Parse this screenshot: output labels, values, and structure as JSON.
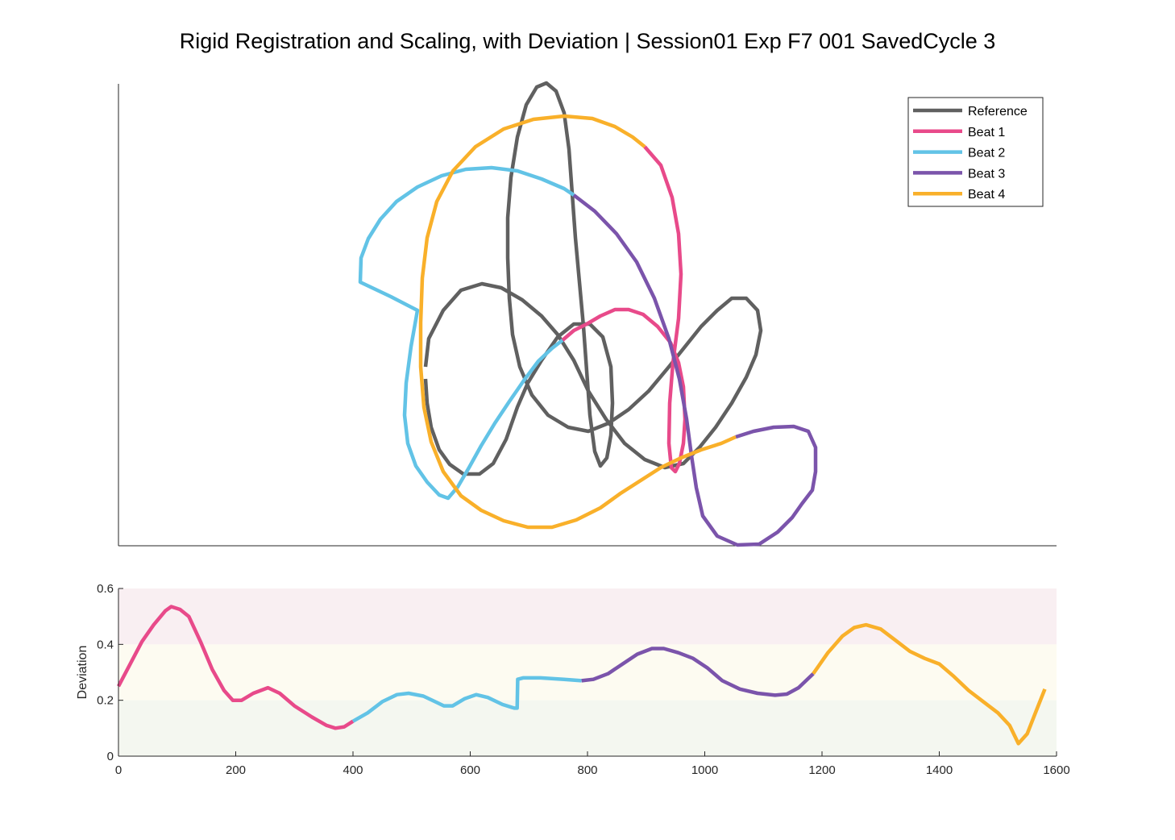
{
  "figure": {
    "title": "Rigid Registration and Scaling, with Deviation | Session01 Exp F7 001 SavedCycle 3"
  },
  "colors": {
    "Reference": "#606060",
    "Beat 1": "#e84a8a",
    "Beat 2": "#62c3e6",
    "Beat 3": "#7b54ab",
    "Beat 4": "#f9b02a",
    "band_high": "#f9eff2",
    "band_mid": "#fdfbf1",
    "band_low": "#f4f7f0"
  },
  "chart_data": [
    {
      "type": "line",
      "name": "trajectory-plot",
      "axes_visible": false,
      "legend_position": "top-right",
      "series": [
        {
          "name": "Reference",
          "color": "#606060",
          "points": [
            [
              528,
              455
            ],
            [
              532,
              420
            ],
            [
              550,
              385
            ],
            [
              572,
              360
            ],
            [
              598,
              352
            ],
            [
              622,
              357
            ],
            [
              648,
              372
            ],
            [
              672,
              392
            ],
            [
              692,
              415
            ],
            [
              712,
              447
            ],
            [
              730,
              485
            ],
            [
              752,
              520
            ],
            [
              775,
              550
            ],
            [
              800,
              570
            ],
            [
              825,
              580
            ],
            [
              848,
              575
            ],
            [
              868,
              555
            ],
            [
              888,
              530
            ],
            [
              908,
              500
            ],
            [
              926,
              468
            ],
            [
              938,
              440
            ],
            [
              944,
              410
            ],
            [
              940,
              385
            ],
            [
              926,
              370
            ],
            [
              908,
              370
            ],
            [
              890,
              385
            ],
            [
              870,
              405
            ],
            [
              850,
              430
            ],
            [
              830,
              455
            ],
            [
              805,
              485
            ],
            [
              780,
              508
            ],
            [
              755,
              525
            ],
            [
              730,
              535
            ],
            [
              705,
              530
            ],
            [
              680,
              515
            ],
            [
              660,
              490
            ],
            [
              645,
              455
            ],
            [
              636,
              415
            ],
            [
              632,
              370
            ],
            [
              630,
              320
            ],
            [
              630,
              270
            ],
            [
              634,
              220
            ],
            [
              642,
              170
            ],
            [
              653,
              130
            ],
            [
              666,
              108
            ],
            [
              678,
              103
            ],
            [
              690,
              113
            ],
            [
              700,
              140
            ],
            [
              706,
              185
            ],
            [
              710,
              240
            ],
            [
              714,
              295
            ],
            [
              719,
              350
            ],
            [
              724,
              405
            ],
            [
              728,
              460
            ],
            [
              732,
              515
            ],
            [
              738,
              560
            ],
            [
              745,
              578
            ],
            [
              753,
              568
            ],
            [
              758,
              540
            ],
            [
              760,
              500
            ],
            [
              758,
              455
            ],
            [
              748,
              418
            ],
            [
              732,
              402
            ],
            [
              712,
              402
            ],
            [
              692,
              418
            ],
            [
              672,
              447
            ],
            [
              655,
              475
            ],
            [
              642,
              505
            ],
            [
              628,
              545
            ],
            [
              612,
              575
            ],
            [
              595,
              588
            ],
            [
              575,
              588
            ],
            [
              558,
              576
            ],
            [
              545,
              558
            ],
            [
              535,
              530
            ],
            [
              530,
              500
            ],
            [
              528,
              470
            ]
          ]
        },
        {
          "name": "Beat 1",
          "color": "#e84a8a",
          "points": [
            [
              800,
              182
            ],
            [
              820,
              205
            ],
            [
              834,
              245
            ],
            [
              842,
              290
            ],
            [
              845,
              340
            ],
            [
              842,
              395
            ],
            [
              835,
              450
            ],
            [
              831,
              500
            ],
            [
              830,
              550
            ],
            [
              833,
              580
            ],
            [
              838,
              585
            ],
            [
              843,
              575
            ],
            [
              848,
              550
            ],
            [
              850,
              520
            ],
            [
              848,
              480
            ],
            [
              842,
              450
            ],
            [
              832,
              425
            ],
            [
              816,
              405
            ],
            [
              798,
              390
            ],
            [
              780,
              384
            ],
            [
              763,
              384
            ],
            [
              745,
              392
            ],
            [
              728,
              402
            ],
            [
              712,
              410
            ],
            [
              698,
              422
            ]
          ]
        },
        {
          "name": "Beat 2",
          "color": "#62c3e6",
          "points": [
            [
              698,
              422
            ],
            [
              685,
              432
            ],
            [
              668,
              448
            ],
            [
              650,
              472
            ],
            [
              632,
              498
            ],
            [
              614,
              525
            ],
            [
              597,
              553
            ],
            [
              582,
              580
            ],
            [
              568,
              604
            ],
            [
              556,
              618
            ],
            [
              545,
              614
            ],
            [
              530,
              598
            ],
            [
              516,
              578
            ],
            [
              506,
              550
            ],
            [
              502,
              515
            ],
            [
              504,
              475
            ],
            [
              510,
              430
            ],
            [
              518,
              385
            ],
            [
              485,
              368
            ],
            [
              447,
              350
            ],
            [
              448,
              320
            ],
            [
              457,
              296
            ],
            [
              472,
              272
            ],
            [
              492,
              250
            ],
            [
              518,
              232
            ],
            [
              548,
              218
            ],
            [
              578,
              210
            ],
            [
              610,
              208
            ],
            [
              642,
              212
            ],
            [
              672,
              222
            ],
            [
              700,
              234
            ],
            [
              712,
              242
            ]
          ]
        },
        {
          "name": "Beat 3",
          "color": "#7b54ab",
          "points": [
            [
              712,
              242
            ],
            [
              738,
              262
            ],
            [
              765,
              290
            ],
            [
              790,
              325
            ],
            [
              812,
              370
            ],
            [
              830,
              420
            ],
            [
              843,
              470
            ],
            [
              852,
              520
            ],
            [
              858,
              565
            ],
            [
              864,
              605
            ],
            [
              872,
              640
            ],
            [
              890,
              665
            ],
            [
              915,
              676
            ],
            [
              942,
              675
            ],
            [
              965,
              660
            ],
            [
              983,
              642
            ],
            [
              995,
              625
            ],
            [
              1008,
              608
            ],
            [
              1012,
              585
            ],
            [
              1012,
              555
            ],
            [
              1003,
              535
            ],
            [
              985,
              529
            ],
            [
              960,
              530
            ],
            [
              935,
              535
            ],
            [
              913,
              542
            ]
          ]
        },
        {
          "name": "Beat 4",
          "color": "#f9b02a",
          "points": [
            [
              913,
              542
            ],
            [
              895,
              550
            ],
            [
              870,
              558
            ],
            [
              845,
              568
            ],
            [
              820,
              580
            ],
            [
              795,
              596
            ],
            [
              770,
              612
            ],
            [
              745,
              630
            ],
            [
              715,
              645
            ],
            [
              685,
              654
            ],
            [
              655,
              654
            ],
            [
              625,
              646
            ],
            [
              597,
              633
            ],
            [
              572,
              615
            ],
            [
              550,
              585
            ],
            [
              535,
              548
            ],
            [
              526,
              505
            ],
            [
              522,
              455
            ],
            [
              522,
              400
            ],
            [
              524,
              345
            ],
            [
              530,
              295
            ],
            [
              542,
              250
            ],
            [
              562,
              212
            ],
            [
              590,
              182
            ],
            [
              625,
              160
            ],
            [
              662,
              148
            ],
            [
              700,
              144
            ],
            [
              735,
              147
            ],
            [
              763,
              157
            ],
            [
              785,
              170
            ],
            [
              800,
              182
            ]
          ]
        }
      ]
    },
    {
      "type": "line",
      "name": "deviation-plot",
      "xlim": [
        0,
        1600
      ],
      "ylim": [
        0,
        0.6
      ],
      "xticks": [
        0,
        200,
        400,
        600,
        800,
        1000,
        1200,
        1400,
        1600
      ],
      "yticks": [
        0,
        0.2,
        0.4,
        0.6
      ],
      "ytick_labels": [
        "0",
        "0.2",
        "0.4",
        "0.6"
      ],
      "ylabel": "Deviation",
      "bands": [
        {
          "from": 0.4,
          "to": 0.6,
          "color": "#f9eff2"
        },
        {
          "from": 0.2,
          "to": 0.4,
          "color": "#fdfbf1"
        },
        {
          "from": 0,
          "to": 0.2,
          "color": "#f4f7f0"
        }
      ],
      "series": [
        {
          "name": "Beat 1",
          "color": "#e84a8a",
          "x": [
            0,
            20,
            40,
            60,
            80,
            90,
            105,
            120,
            140,
            160,
            180,
            195,
            210,
            230,
            255,
            275,
            300,
            330,
            355,
            370,
            385,
            400
          ],
          "y": [
            0.25,
            0.33,
            0.41,
            0.47,
            0.52,
            0.535,
            0.525,
            0.5,
            0.41,
            0.31,
            0.235,
            0.2,
            0.2,
            0.225,
            0.245,
            0.225,
            0.18,
            0.14,
            0.11,
            0.1,
            0.105,
            0.125
          ]
        },
        {
          "name": "Beat 2",
          "color": "#62c3e6",
          "x": [
            400,
            425,
            450,
            475,
            495,
            520,
            540,
            555,
            570,
            590,
            610,
            630,
            655,
            675,
            680,
            681,
            690,
            720,
            760,
            790
          ],
          "y": [
            0.125,
            0.155,
            0.195,
            0.22,
            0.225,
            0.215,
            0.195,
            0.18,
            0.18,
            0.205,
            0.22,
            0.21,
            0.185,
            0.172,
            0.172,
            0.275,
            0.28,
            0.28,
            0.275,
            0.27
          ]
        },
        {
          "name": "Beat 3",
          "color": "#7b54ab",
          "x": [
            790,
            810,
            835,
            860,
            885,
            910,
            930,
            955,
            980,
            1005,
            1030,
            1060,
            1090,
            1120,
            1140,
            1160,
            1185
          ],
          "y": [
            0.27,
            0.275,
            0.295,
            0.33,
            0.365,
            0.385,
            0.385,
            0.37,
            0.35,
            0.315,
            0.27,
            0.24,
            0.225,
            0.218,
            0.222,
            0.245,
            0.295
          ]
        },
        {
          "name": "Beat 4",
          "color": "#f9b02a",
          "x": [
            1185,
            1210,
            1235,
            1255,
            1275,
            1300,
            1325,
            1350,
            1375,
            1400,
            1425,
            1450,
            1475,
            1500,
            1520,
            1535,
            1550,
            1565,
            1580
          ],
          "y": [
            0.295,
            0.37,
            0.43,
            0.46,
            0.47,
            0.455,
            0.415,
            0.375,
            0.35,
            0.33,
            0.285,
            0.235,
            0.195,
            0.155,
            0.11,
            0.045,
            0.08,
            0.16,
            0.24
          ]
        }
      ]
    }
  ]
}
